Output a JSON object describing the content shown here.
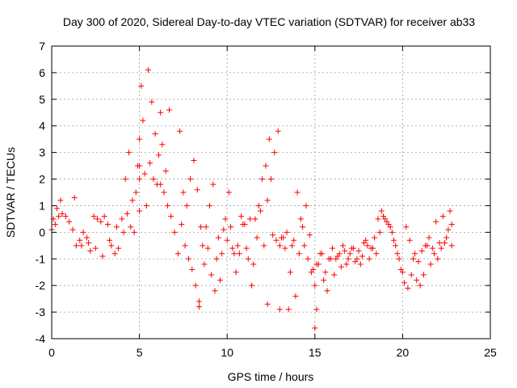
{
  "chart_data": {
    "type": "scatter",
    "title": "Day 300 of 2020, Sidereal Day-to-day VTEC variation (SDTVAR) for receiver ab33",
    "xlabel": "GPS time / hours",
    "ylabel": "SDTVAR / TECUs",
    "xlim": [
      0,
      25
    ],
    "ylim": [
      -4,
      7
    ],
    "xticks": [
      0,
      5,
      10,
      15,
      20,
      25
    ],
    "xtick_labels": [
      "0",
      "5",
      "10",
      "15",
      "20",
      "25"
    ],
    "yticks": [
      -4,
      -3,
      -2,
      -1,
      0,
      1,
      2,
      3,
      4,
      5,
      6,
      7
    ],
    "ytick_labels": [
      "-4",
      "-3",
      "-2",
      "-1",
      "0",
      "1",
      "2",
      "3",
      "4",
      "5",
      "6",
      "7"
    ],
    "grid": true,
    "marker": "+",
    "marker_color": "#ff0000",
    "series": [
      {
        "name": "ab33",
        "x": [
          0.0,
          0.2,
          0.4,
          0.6,
          0.8,
          1.0,
          1.2,
          1.4,
          1.6,
          1.8,
          2.0,
          2.2,
          2.4,
          2.6,
          2.8,
          3.0,
          3.2,
          3.4,
          3.6,
          3.8,
          4.0,
          4.2,
          4.4,
          4.6,
          4.8,
          5.0,
          5.1,
          5.2,
          5.4,
          5.6,
          5.8,
          6.0,
          6.2,
          6.4,
          6.6,
          6.8,
          7.0,
          7.2,
          7.4,
          7.6,
          7.8,
          8.0,
          8.2,
          8.4,
          8.6,
          8.8,
          9.0,
          9.2,
          9.4,
          9.6,
          9.8,
          10.0,
          10.2,
          10.4,
          10.6,
          10.8,
          11.0,
          11.2,
          11.4,
          11.6,
          11.8,
          12.0,
          12.2,
          12.4,
          12.6,
          12.8,
          13.0,
          13.2,
          13.4,
          13.6,
          13.8,
          14.0,
          14.2,
          14.4,
          14.6,
          14.8,
          15.0,
          15.2,
          15.4,
          15.6,
          15.8,
          16.0,
          16.2,
          16.4,
          16.6,
          16.8,
          17.0,
          17.2,
          17.4,
          17.6,
          17.8,
          18.0,
          18.2,
          18.4,
          18.6,
          18.8,
          19.0,
          19.2,
          19.4,
          19.6,
          19.8,
          20.0,
          20.2,
          20.4,
          20.6,
          20.8,
          21.0,
          21.2,
          21.4,
          21.6,
          21.8,
          22.0,
          22.2,
          22.4,
          22.6,
          22.8,
          0.1,
          0.3,
          0.5,
          1.3,
          1.7,
          2.1,
          2.5,
          2.9,
          3.3,
          3.7,
          4.1,
          4.3,
          4.5,
          4.7,
          4.9,
          5.0,
          5.0,
          5.0,
          5.3,
          5.5,
          5.7,
          5.9,
          6.1,
          6.2,
          6.3,
          6.5,
          6.7,
          7.3,
          7.5,
          7.7,
          7.9,
          8.1,
          8.3,
          8.5,
          8.7,
          8.9,
          9.1,
          9.3,
          9.5,
          9.7,
          9.9,
          10.1,
          10.3,
          10.5,
          10.7,
          10.9,
          11.1,
          11.3,
          11.5,
          11.7,
          11.9,
          12.1,
          12.3,
          12.5,
          12.7,
          12.9,
          13.1,
          13.3,
          13.5,
          13.7,
          13.9,
          14.1,
          14.3,
          14.5,
          14.7,
          14.9,
          15.1,
          15.3,
          15.5,
          15.7,
          15.9,
          16.1,
          16.3,
          16.5,
          16.7,
          16.9,
          17.1,
          17.3,
          17.5,
          17.7,
          17.9,
          18.1,
          18.3,
          18.5,
          18.7,
          18.9,
          19.1,
          19.3,
          19.5,
          19.7,
          19.9,
          20.1,
          20.3,
          20.5,
          20.7,
          20.9,
          21.1,
          21.3,
          21.5,
          21.7,
          21.9,
          22.1,
          22.3,
          22.5,
          22.7,
          22.8,
          15.0,
          15.1,
          13.0,
          12.3,
          8.4
        ],
        "y": [
          0.1,
          0.3,
          0.6,
          0.7,
          0.6,
          0.4,
          0.1,
          -0.5,
          -0.3,
          0.0,
          -0.2,
          -0.7,
          0.6,
          0.5,
          0.4,
          0.6,
          0.3,
          -0.5,
          -0.8,
          -0.6,
          0.5,
          2.0,
          3.0,
          1.2,
          1.5,
          2.0,
          5.5,
          4.2,
          1.0,
          2.6,
          2.0,
          1.8,
          4.5,
          1.5,
          1.0,
          0.6,
          0.0,
          -0.8,
          0.3,
          -0.5,
          -1.0,
          -1.4,
          -2.0,
          -2.6,
          -0.5,
          0.2,
          1.0,
          1.8,
          -1.0,
          -1.8,
          0.1,
          -0.3,
          0.2,
          -0.8,
          -0.5,
          0.6,
          0.3,
          -1.0,
          -2.0,
          0.5,
          1.0,
          2.0,
          2.5,
          3.5,
          -0.1,
          -0.3,
          -0.5,
          -0.2,
          0.0,
          -1.5,
          -0.3,
          1.5,
          0.5,
          -0.5,
          -1.0,
          -1.5,
          -2.0,
          -1.2,
          -0.8,
          -1.5,
          -1.0,
          -0.6,
          -1.0,
          -0.8,
          -0.5,
          -1.2,
          -0.8,
          -0.6,
          -1.0,
          -1.2,
          -0.4,
          -0.5,
          -0.6,
          -0.2,
          0.5,
          0.8,
          0.5,
          0.3,
          0.0,
          -0.5,
          -1.0,
          -1.5,
          0.2,
          -0.3,
          -1.0,
          -1.8,
          -2.0,
          -1.6,
          -0.5,
          -1.2,
          -0.8,
          -1.0,
          -0.6,
          -0.4,
          0.1,
          0.3,
          0.5,
          0.9,
          1.2,
          1.3,
          -0.5,
          -0.4,
          -0.6,
          -0.9,
          -0.3,
          0.2,
          0.0,
          0.7,
          0.2,
          0.0,
          2.5,
          3.5,
          2.5,
          0.8,
          2.2,
          6.1,
          4.9,
          3.7,
          2.9,
          1.8,
          3.3,
          2.3,
          4.6,
          3.8,
          1.5,
          1.0,
          2.0,
          2.7,
          1.6,
          0.2,
          -1.2,
          -0.6,
          -1.6,
          -2.2,
          -0.2,
          -0.8,
          0.5,
          1.5,
          -0.6,
          -1.5,
          -0.8,
          0.3,
          -0.6,
          0.5,
          -1.2,
          -0.2,
          0.8,
          -0.5,
          1.2,
          2.0,
          3.0,
          3.8,
          -0.2,
          -0.6,
          -2.9,
          -0.5,
          -2.4,
          -0.8,
          0.2,
          1.0,
          -0.1,
          -1.4,
          -1.2,
          -0.8,
          -1.8,
          -2.2,
          -1.0,
          -1.6,
          -0.9,
          -1.3,
          -0.7,
          -1.0,
          -0.6,
          -1.1,
          -0.7,
          -0.9,
          -0.3,
          -1.0,
          -0.6,
          -0.8,
          0.0,
          0.6,
          0.4,
          0.2,
          -0.3,
          -0.8,
          -1.4,
          -1.9,
          -2.1,
          -1.6,
          -0.8,
          -1.1,
          -0.7,
          -0.5,
          -0.2,
          -0.6,
          0.4,
          -0.4,
          0.6,
          -0.2,
          0.8,
          -0.5,
          -3.6,
          -2.9,
          -2.9,
          -2.7,
          -2.8
        ]
      }
    ]
  }
}
